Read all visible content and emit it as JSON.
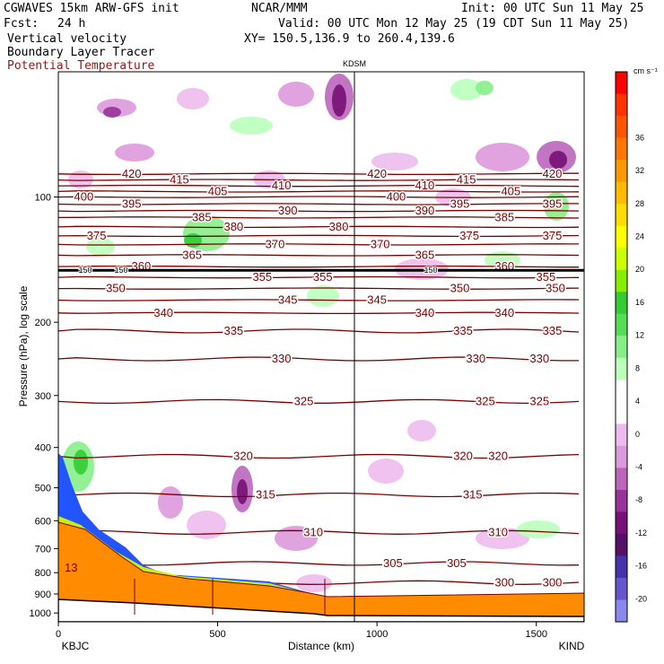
{
  "header": {
    "model": "CGWAVES 15km ARW-GFS init",
    "org": "NCAR/MMM",
    "init": "Init: 00 UTC Sun 11 May 25",
    "fcst_label": "Fcst:",
    "fcst_value": "24 h",
    "valid": "Valid: 00 UTC Mon 12 May 25 (19 CDT Sun 11 May 25)",
    "xy": "XY= 150.5,136.9 to 260.4,139.6",
    "field1": "Vertical velocity",
    "field2": "Boundary Layer Tracer",
    "field3": "Potential Temperature"
  },
  "chart_data": {
    "type": "cross-section",
    "title": "Vertical velocity / Potential Temperature cross-section",
    "xlabel": "Distance (km)",
    "ylabel": "Pressure (hPa), log scale",
    "xlim": [
      0,
      1650
    ],
    "ylim": [
      1050,
      50
    ],
    "x_ticks": [
      0,
      500,
      1000,
      1500
    ],
    "y_ticks": [
      100,
      200,
      300,
      400,
      500,
      600,
      700,
      800,
      900,
      1000
    ],
    "station_marker": {
      "label": "KDSM",
      "x": 930
    },
    "endpoints": {
      "left": "KBJC",
      "right": "KIND"
    },
    "colorbar": {
      "units": "cm s⁻¹",
      "labels": [
        36,
        32,
        28,
        24,
        20,
        16,
        12,
        8,
        4,
        0,
        -4,
        -8,
        -12,
        -16,
        -20
      ],
      "colors": [
        "#ff0000",
        "#ff3300",
        "#ff5500",
        "#ff7700",
        "#ff9900",
        "#ffbb00",
        "#ffdd00",
        "#ffff00",
        "#ccff00",
        "#88ee00",
        "#33cc33",
        "#55dd55",
        "#88ee88",
        "#bbffbb",
        "#ffffff",
        "#ffffff",
        "#eebbee",
        "#dd99dd",
        "#bb66bb",
        "#993399",
        "#771177",
        "#551166",
        "#4433aa",
        "#6655cc",
        "#8888ee"
      ]
    },
    "theta_contours": [
      {
        "theta": 420,
        "p": 88,
        "labels_x": [
          230,
          1000,
          1550
        ]
      },
      {
        "theta": 415,
        "p": 91,
        "labels_x": [
          380,
          1280
        ]
      },
      {
        "theta": 410,
        "p": 94,
        "labels_x": [
          700,
          1150
        ]
      },
      {
        "theta": 405,
        "p": 97,
        "labels_x": [
          500,
          1420
        ]
      },
      {
        "theta": 400,
        "p": 100,
        "labels_x": [
          80,
          1060
        ]
      },
      {
        "theta": 395,
        "p": 104,
        "labels_x": [
          230,
          1260,
          1550
        ]
      },
      {
        "theta": 390,
        "p": 108,
        "labels_x": [
          720,
          1150
        ]
      },
      {
        "theta": 385,
        "p": 112,
        "labels_x": [
          450,
          1400
        ]
      },
      {
        "theta": 380,
        "p": 118,
        "labels_x": [
          550,
          880
        ]
      },
      {
        "theta": 375,
        "p": 124,
        "labels_x": [
          120,
          1290,
          1550
        ]
      },
      {
        "theta": 370,
        "p": 130,
        "labels_x": [
          680,
          1010
        ]
      },
      {
        "theta": 365,
        "p": 138,
        "labels_x": [
          420,
          1150
        ]
      },
      {
        "theta": 360,
        "p": 147,
        "labels_x": [
          260,
          1400
        ]
      },
      {
        "theta": 355,
        "p": 156,
        "labels_x": [
          640,
          830,
          1530
        ]
      },
      {
        "theta": 350,
        "p": 166,
        "labels_x": [
          180,
          1260,
          1560
        ]
      },
      {
        "theta": 345,
        "p": 177,
        "labels_x": [
          720,
          1000
        ]
      },
      {
        "theta": 340,
        "p": 190,
        "labels_x": [
          330,
          1150,
          1400
        ]
      },
      {
        "theta": 335,
        "p": 210,
        "labels_x": [
          550,
          1270,
          1550
        ]
      },
      {
        "theta": 330,
        "p": 245,
        "labels_x": [
          700,
          1310,
          1510
        ]
      },
      {
        "theta": 325,
        "p": 310,
        "labels_x": [
          770,
          1340,
          1510
        ]
      },
      {
        "theta": 320,
        "p": 420,
        "labels_x": [
          580,
          1270,
          1380
        ]
      },
      {
        "theta": 315,
        "p": 520,
        "labels_x": [
          650,
          1300
        ]
      },
      {
        "theta": 310,
        "p": 640,
        "labels_x": [
          800,
          1380
        ]
      },
      {
        "theta": 305,
        "p": 760,
        "labels_x": [
          1050,
          1250
        ]
      },
      {
        "theta": 300,
        "p": 845,
        "labels_x": [
          1400,
          1550
        ]
      }
    ],
    "tropopause_label": "150",
    "surface_label": "13"
  }
}
